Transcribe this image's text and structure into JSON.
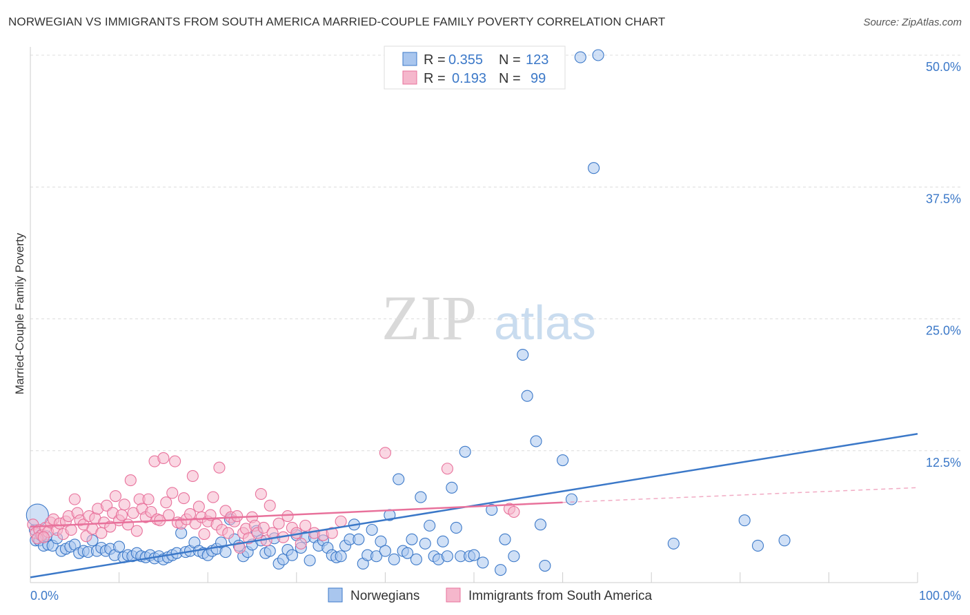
{
  "title": "NORWEGIAN VS IMMIGRANTS FROM SOUTH AMERICA MARRIED-COUPLE FAMILY POVERTY CORRELATION CHART",
  "source": "Source: ZipAtlas.com",
  "watermark": {
    "zip": "ZIP",
    "atlas": "atlas"
  },
  "colors": {
    "blue": "#3b78c8",
    "blue_fill": "#a9c6ee",
    "pink": "#e8719b",
    "pink_fill": "#f5b7cc"
  },
  "chart_data": {
    "type": "scatter",
    "title": "NORWEGIAN VS IMMIGRANTS FROM SOUTH AMERICA MARRIED-COUPLE FAMILY POVERTY CORRELATION CHART",
    "xlabel": "",
    "ylabel": "Married-Couple Family Poverty",
    "xlim": [
      0,
      100
    ],
    "ylim": [
      0,
      50
    ],
    "x_tick_labels": [
      "0.0%",
      "100.0%"
    ],
    "y_tick_labels": [
      "12.5%",
      "25.0%",
      "37.5%",
      "50.0%"
    ],
    "y_ticks": [
      12.5,
      25.0,
      37.5,
      50.0
    ],
    "grid": true,
    "legend_position": "top-center",
    "stats": [
      {
        "series": "Norwegians",
        "r_label": "R =",
        "r": "0.355",
        "n_label": "N =",
        "n": "123"
      },
      {
        "series": "Immigrants from South America",
        "r_label": "R =",
        "r": "0.193",
        "n_label": "N =",
        "n": "99"
      }
    ],
    "series": [
      {
        "name": "Norwegians",
        "color": "#3b78c8",
        "trend": {
          "x": [
            0,
            100
          ],
          "y": [
            0.5,
            14.1
          ]
        },
        "points": [
          [
            0.5,
            5.0
          ],
          [
            0.6,
            4.0
          ],
          [
            1.0,
            4.0
          ],
          [
            1.2,
            4.5
          ],
          [
            1.5,
            3.5
          ],
          [
            2.0,
            3.6
          ],
          [
            2.5,
            3.5
          ],
          [
            3.0,
            4.2
          ],
          [
            3.5,
            3.0
          ],
          [
            4.0,
            3.2
          ],
          [
            4.5,
            3.4
          ],
          [
            5.0,
            3.6
          ],
          [
            5.5,
            2.8
          ],
          [
            6.0,
            3.0
          ],
          [
            6.5,
            2.9
          ],
          [
            7.0,
            4.0
          ],
          [
            7.5,
            3.0
          ],
          [
            8.0,
            3.3
          ],
          [
            8.5,
            3.0
          ],
          [
            9.0,
            3.2
          ],
          [
            9.5,
            2.6
          ],
          [
            10.0,
            3.4
          ],
          [
            10.5,
            2.4
          ],
          [
            11.0,
            2.6
          ],
          [
            11.5,
            2.5
          ],
          [
            12.0,
            2.8
          ],
          [
            12.5,
            2.5
          ],
          [
            13.0,
            2.4
          ],
          [
            13.5,
            2.6
          ],
          [
            14.0,
            2.3
          ],
          [
            14.5,
            2.5
          ],
          [
            15.0,
            2.2
          ],
          [
            15.5,
            2.4
          ],
          [
            16.0,
            2.6
          ],
          [
            16.5,
            2.8
          ],
          [
            17.0,
            4.7
          ],
          [
            17.5,
            2.9
          ],
          [
            18.0,
            3.0
          ],
          [
            18.5,
            3.8
          ],
          [
            19.0,
            3.0
          ],
          [
            19.5,
            2.8
          ],
          [
            20.0,
            2.6
          ],
          [
            20.5,
            3.0
          ],
          [
            21.0,
            3.2
          ],
          [
            21.5,
            3.8
          ],
          [
            22.0,
            2.9
          ],
          [
            22.5,
            6.0
          ],
          [
            23.0,
            4.1
          ],
          [
            23.5,
            3.5
          ],
          [
            24.0,
            2.5
          ],
          [
            24.5,
            2.9
          ],
          [
            25.0,
            3.6
          ],
          [
            25.5,
            4.9
          ],
          [
            26.0,
            4.0
          ],
          [
            26.5,
            2.8
          ],
          [
            27.0,
            3.0
          ],
          [
            27.5,
            4.2
          ],
          [
            28.0,
            1.8
          ],
          [
            28.5,
            2.2
          ],
          [
            29.0,
            3.1
          ],
          [
            29.5,
            2.6
          ],
          [
            30.0,
            4.5
          ],
          [
            30.5,
            3.3
          ],
          [
            31.0,
            4.3
          ],
          [
            31.5,
            2.1
          ],
          [
            32.0,
            4.3
          ],
          [
            32.5,
            3.5
          ],
          [
            33.0,
            4.0
          ],
          [
            33.5,
            3.3
          ],
          [
            34.0,
            2.6
          ],
          [
            34.5,
            2.4
          ],
          [
            35.0,
            2.5
          ],
          [
            35.5,
            3.5
          ],
          [
            36.0,
            4.1
          ],
          [
            36.5,
            5.5
          ],
          [
            37.0,
            4.1
          ],
          [
            37.5,
            1.8
          ],
          [
            38.0,
            2.6
          ],
          [
            38.5,
            5.0
          ],
          [
            39.0,
            2.5
          ],
          [
            39.5,
            3.9
          ],
          [
            40.0,
            3.0
          ],
          [
            40.5,
            6.4
          ],
          [
            41.0,
            2.2
          ],
          [
            41.5,
            9.8
          ],
          [
            42.0,
            3.0
          ],
          [
            42.5,
            2.8
          ],
          [
            43.0,
            4.1
          ],
          [
            43.5,
            2.2
          ],
          [
            44.0,
            8.1
          ],
          [
            44.5,
            3.7
          ],
          [
            45.0,
            5.4
          ],
          [
            45.5,
            2.5
          ],
          [
            46.0,
            2.2
          ],
          [
            46.5,
            3.9
          ],
          [
            47.0,
            2.5
          ],
          [
            47.5,
            9.0
          ],
          [
            48.0,
            5.2
          ],
          [
            48.5,
            2.5
          ],
          [
            49.0,
            12.4
          ],
          [
            49.5,
            2.5
          ],
          [
            50.0,
            2.6
          ],
          [
            51.0,
            1.9
          ],
          [
            52.0,
            6.9
          ],
          [
            53.0,
            1.2
          ],
          [
            53.5,
            4.1
          ],
          [
            54.5,
            2.5
          ],
          [
            55.5,
            21.6
          ],
          [
            56.0,
            17.7
          ],
          [
            57.0,
            13.4
          ],
          [
            57.5,
            5.5
          ],
          [
            58.0,
            1.6
          ],
          [
            60.0,
            11.6
          ],
          [
            61.0,
            7.9
          ],
          [
            62.0,
            49.8
          ],
          [
            63.5,
            39.3
          ],
          [
            64.0,
            50.0
          ],
          [
            72.5,
            3.7
          ],
          [
            80.5,
            5.9
          ],
          [
            82.0,
            3.5
          ],
          [
            85.0,
            4.0
          ],
          [
            0.8,
            6.4
          ],
          [
            1.8,
            4.4
          ]
        ]
      },
      {
        "name": "Immigrants from South America",
        "color": "#e8719b",
        "trend": {
          "x": [
            0,
            60
          ],
          "y": [
            5.3,
            7.6
          ],
          "dashed_to": {
            "x": 100,
            "y": 9.0
          }
        },
        "points": [
          [
            0.3,
            5.5
          ],
          [
            0.6,
            4.7
          ],
          [
            1.0,
            5.0
          ],
          [
            1.3,
            4.5
          ],
          [
            1.7,
            5.2
          ],
          [
            2.0,
            4.8
          ],
          [
            2.3,
            5.7
          ],
          [
            2.6,
            6.0
          ],
          [
            3.0,
            5.0
          ],
          [
            3.3,
            5.6
          ],
          [
            3.7,
            4.6
          ],
          [
            4.0,
            5.8
          ],
          [
            4.3,
            6.3
          ],
          [
            4.6,
            5.0
          ],
          [
            5.0,
            7.9
          ],
          [
            5.3,
            6.6
          ],
          [
            5.6,
            5.9
          ],
          [
            6.0,
            5.5
          ],
          [
            6.3,
            4.4
          ],
          [
            6.6,
            6.3
          ],
          [
            7.0,
            5.1
          ],
          [
            7.3,
            6.1
          ],
          [
            7.6,
            7.0
          ],
          [
            8.0,
            4.7
          ],
          [
            8.3,
            5.7
          ],
          [
            8.6,
            7.3
          ],
          [
            9.0,
            5.3
          ],
          [
            9.3,
            6.6
          ],
          [
            9.6,
            8.2
          ],
          [
            10.0,
            5.9
          ],
          [
            10.3,
            6.4
          ],
          [
            10.6,
            7.4
          ],
          [
            11.0,
            5.5
          ],
          [
            11.3,
            9.7
          ],
          [
            11.6,
            6.6
          ],
          [
            12.0,
            4.9
          ],
          [
            12.3,
            7.9
          ],
          [
            12.6,
            7.0
          ],
          [
            13.0,
            6.2
          ],
          [
            13.3,
            7.9
          ],
          [
            13.6,
            6.7
          ],
          [
            14.0,
            11.5
          ],
          [
            14.3,
            6.0
          ],
          [
            14.6,
            5.9
          ],
          [
            15.0,
            11.8
          ],
          [
            15.3,
            7.6
          ],
          [
            15.6,
            6.4
          ],
          [
            16.0,
            8.5
          ],
          [
            16.3,
            11.5
          ],
          [
            16.6,
            5.7
          ],
          [
            17.0,
            5.6
          ],
          [
            17.3,
            8.0
          ],
          [
            17.6,
            6.0
          ],
          [
            18.0,
            6.5
          ],
          [
            18.3,
            10.1
          ],
          [
            18.6,
            5.6
          ],
          [
            19.0,
            7.2
          ],
          [
            19.3,
            6.2
          ],
          [
            19.6,
            4.6
          ],
          [
            20.0,
            5.8
          ],
          [
            20.3,
            6.4
          ],
          [
            20.6,
            8.1
          ],
          [
            21.0,
            5.5
          ],
          [
            21.3,
            10.9
          ],
          [
            21.6,
            5.0
          ],
          [
            22.0,
            6.8
          ],
          [
            22.3,
            4.7
          ],
          [
            22.6,
            6.2
          ],
          [
            23.0,
            5.8
          ],
          [
            23.3,
            6.3
          ],
          [
            23.6,
            3.3
          ],
          [
            24.0,
            4.7
          ],
          [
            24.3,
            5.1
          ],
          [
            24.6,
            4.2
          ],
          [
            25.0,
            6.2
          ],
          [
            25.3,
            5.4
          ],
          [
            25.6,
            4.7
          ],
          [
            26.0,
            8.4
          ],
          [
            26.3,
            5.2
          ],
          [
            26.6,
            4.0
          ],
          [
            27.0,
            7.3
          ],
          [
            27.3,
            4.7
          ],
          [
            28.0,
            5.6
          ],
          [
            28.5,
            4.3
          ],
          [
            29.0,
            6.3
          ],
          [
            29.5,
            5.2
          ],
          [
            30.0,
            4.7
          ],
          [
            30.5,
            3.7
          ],
          [
            31.0,
            5.4
          ],
          [
            32.0,
            4.7
          ],
          [
            33.0,
            4.5
          ],
          [
            34.0,
            4.7
          ],
          [
            35.0,
            5.8
          ],
          [
            40.0,
            12.3
          ],
          [
            47.0,
            10.8
          ],
          [
            54.0,
            7.0
          ],
          [
            54.5,
            6.7
          ],
          [
            0.8,
            4.2
          ],
          [
            1.5,
            4.3
          ]
        ]
      }
    ]
  }
}
